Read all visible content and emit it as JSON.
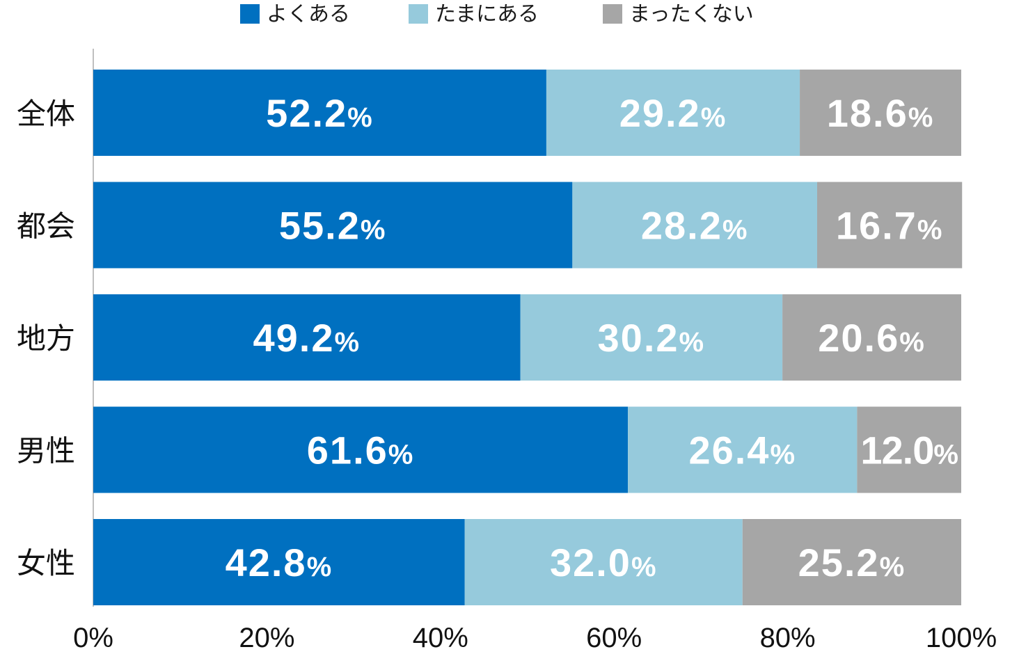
{
  "chart_data": {
    "type": "bar",
    "orientation": "horizontal",
    "stacked": true,
    "categories": [
      "全体",
      "都会",
      "地方",
      "男性",
      "女性"
    ],
    "series": [
      {
        "name": "よくある",
        "color": "#0070c0",
        "values": [
          52.2,
          55.2,
          49.2,
          61.6,
          42.8
        ],
        "labels": [
          "52.2",
          "55.2",
          "49.2",
          "61.6",
          "42.8"
        ]
      },
      {
        "name": "たまにある",
        "color": "#96cadc",
        "values": [
          29.2,
          28.2,
          30.2,
          26.4,
          32.0
        ],
        "labels": [
          "29.2",
          "28.2",
          "30.2",
          "26.4",
          "32.0"
        ]
      },
      {
        "name": "まったくない",
        "color": "#a6a6a6",
        "values": [
          18.6,
          16.7,
          20.6,
          12.0,
          25.2
        ],
        "labels": [
          "18.6",
          "16.7",
          "20.6",
          "12.0",
          "25.2"
        ]
      }
    ],
    "value_suffix": "%",
    "xlim": [
      0,
      100
    ],
    "xticks": [
      "0%",
      "20%",
      "40%",
      "60%",
      "80%",
      "100%"
    ],
    "legend": "top",
    "grid": false
  }
}
